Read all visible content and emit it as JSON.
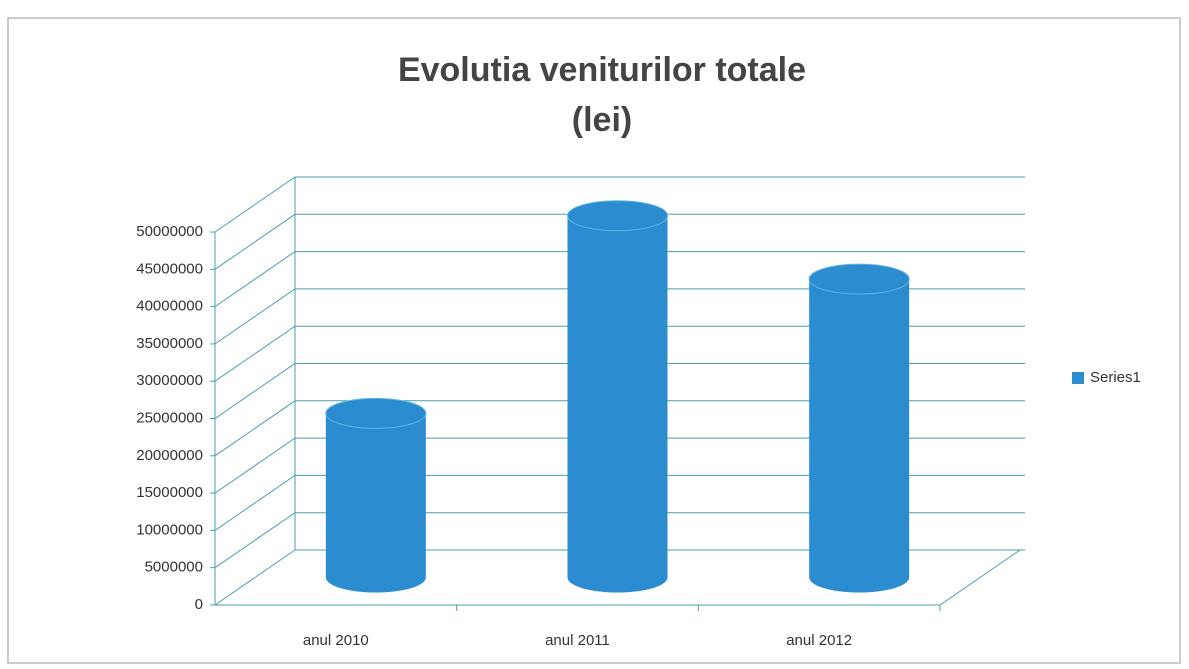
{
  "chart_data": {
    "type": "bar3d",
    "title": "Evolutia veniturilor totale",
    "subtitle": "(lei)",
    "categories": [
      "anul 2010",
      "anul 2011",
      "anul 2012"
    ],
    "series": [
      {
        "name": "Series1",
        "color": "#2b8ccf",
        "values": [
          22000000,
          48500000,
          40000000
        ]
      }
    ],
    "ylim": [
      0,
      50000000
    ],
    "yticks": [
      0,
      5000000,
      10000000,
      15000000,
      20000000,
      25000000,
      30000000,
      35000000,
      40000000,
      45000000,
      50000000
    ],
    "grid": true,
    "legend": "right"
  }
}
